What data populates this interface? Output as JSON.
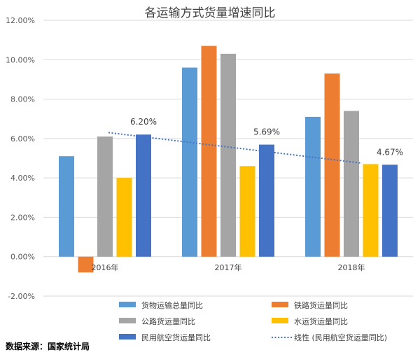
{
  "chart_data": {
    "type": "bar",
    "title": "各运输方式货量增速同比",
    "categories": [
      "2016年",
      "2017年",
      "2018年"
    ],
    "ylim": [
      -2.0,
      12.0
    ],
    "yticks": [
      -2.0,
      0.0,
      2.0,
      4.0,
      6.0,
      8.0,
      10.0,
      12.0
    ],
    "ytick_labels": [
      "-2.00%",
      "0.00%",
      "2.00%",
      "4.00%",
      "6.00%",
      "8.00%",
      "10.00%",
      "12.00%"
    ],
    "grid": true,
    "legend_position": "bottom",
    "series": [
      {
        "name": "货物运输总量同比",
        "color": "#5b9bd5",
        "values": [
          5.1,
          9.6,
          7.1
        ]
      },
      {
        "name": "铁路货运量同比",
        "color": "#ed7d31",
        "values": [
          -0.8,
          10.7,
          9.3
        ]
      },
      {
        "name": "公路货运量同比",
        "color": "#a5a5a5",
        "values": [
          6.1,
          10.3,
          7.4
        ]
      },
      {
        "name": "水运货运量同比",
        "color": "#ffc000",
        "values": [
          4.0,
          4.6,
          4.7
        ]
      },
      {
        "name": "民用航空货运量同比",
        "color": "#4472c4",
        "values": [
          6.2,
          5.69,
          4.67
        ]
      }
    ],
    "data_labels": [
      "6.20%",
      "5.69%",
      "4.67%"
    ],
    "trendline": {
      "name": "线性 (民用航空货运量同比)",
      "color": "#4472c4",
      "start": 6.3,
      "end": 4.75
    }
  },
  "source": "数据来源：国家统计局"
}
